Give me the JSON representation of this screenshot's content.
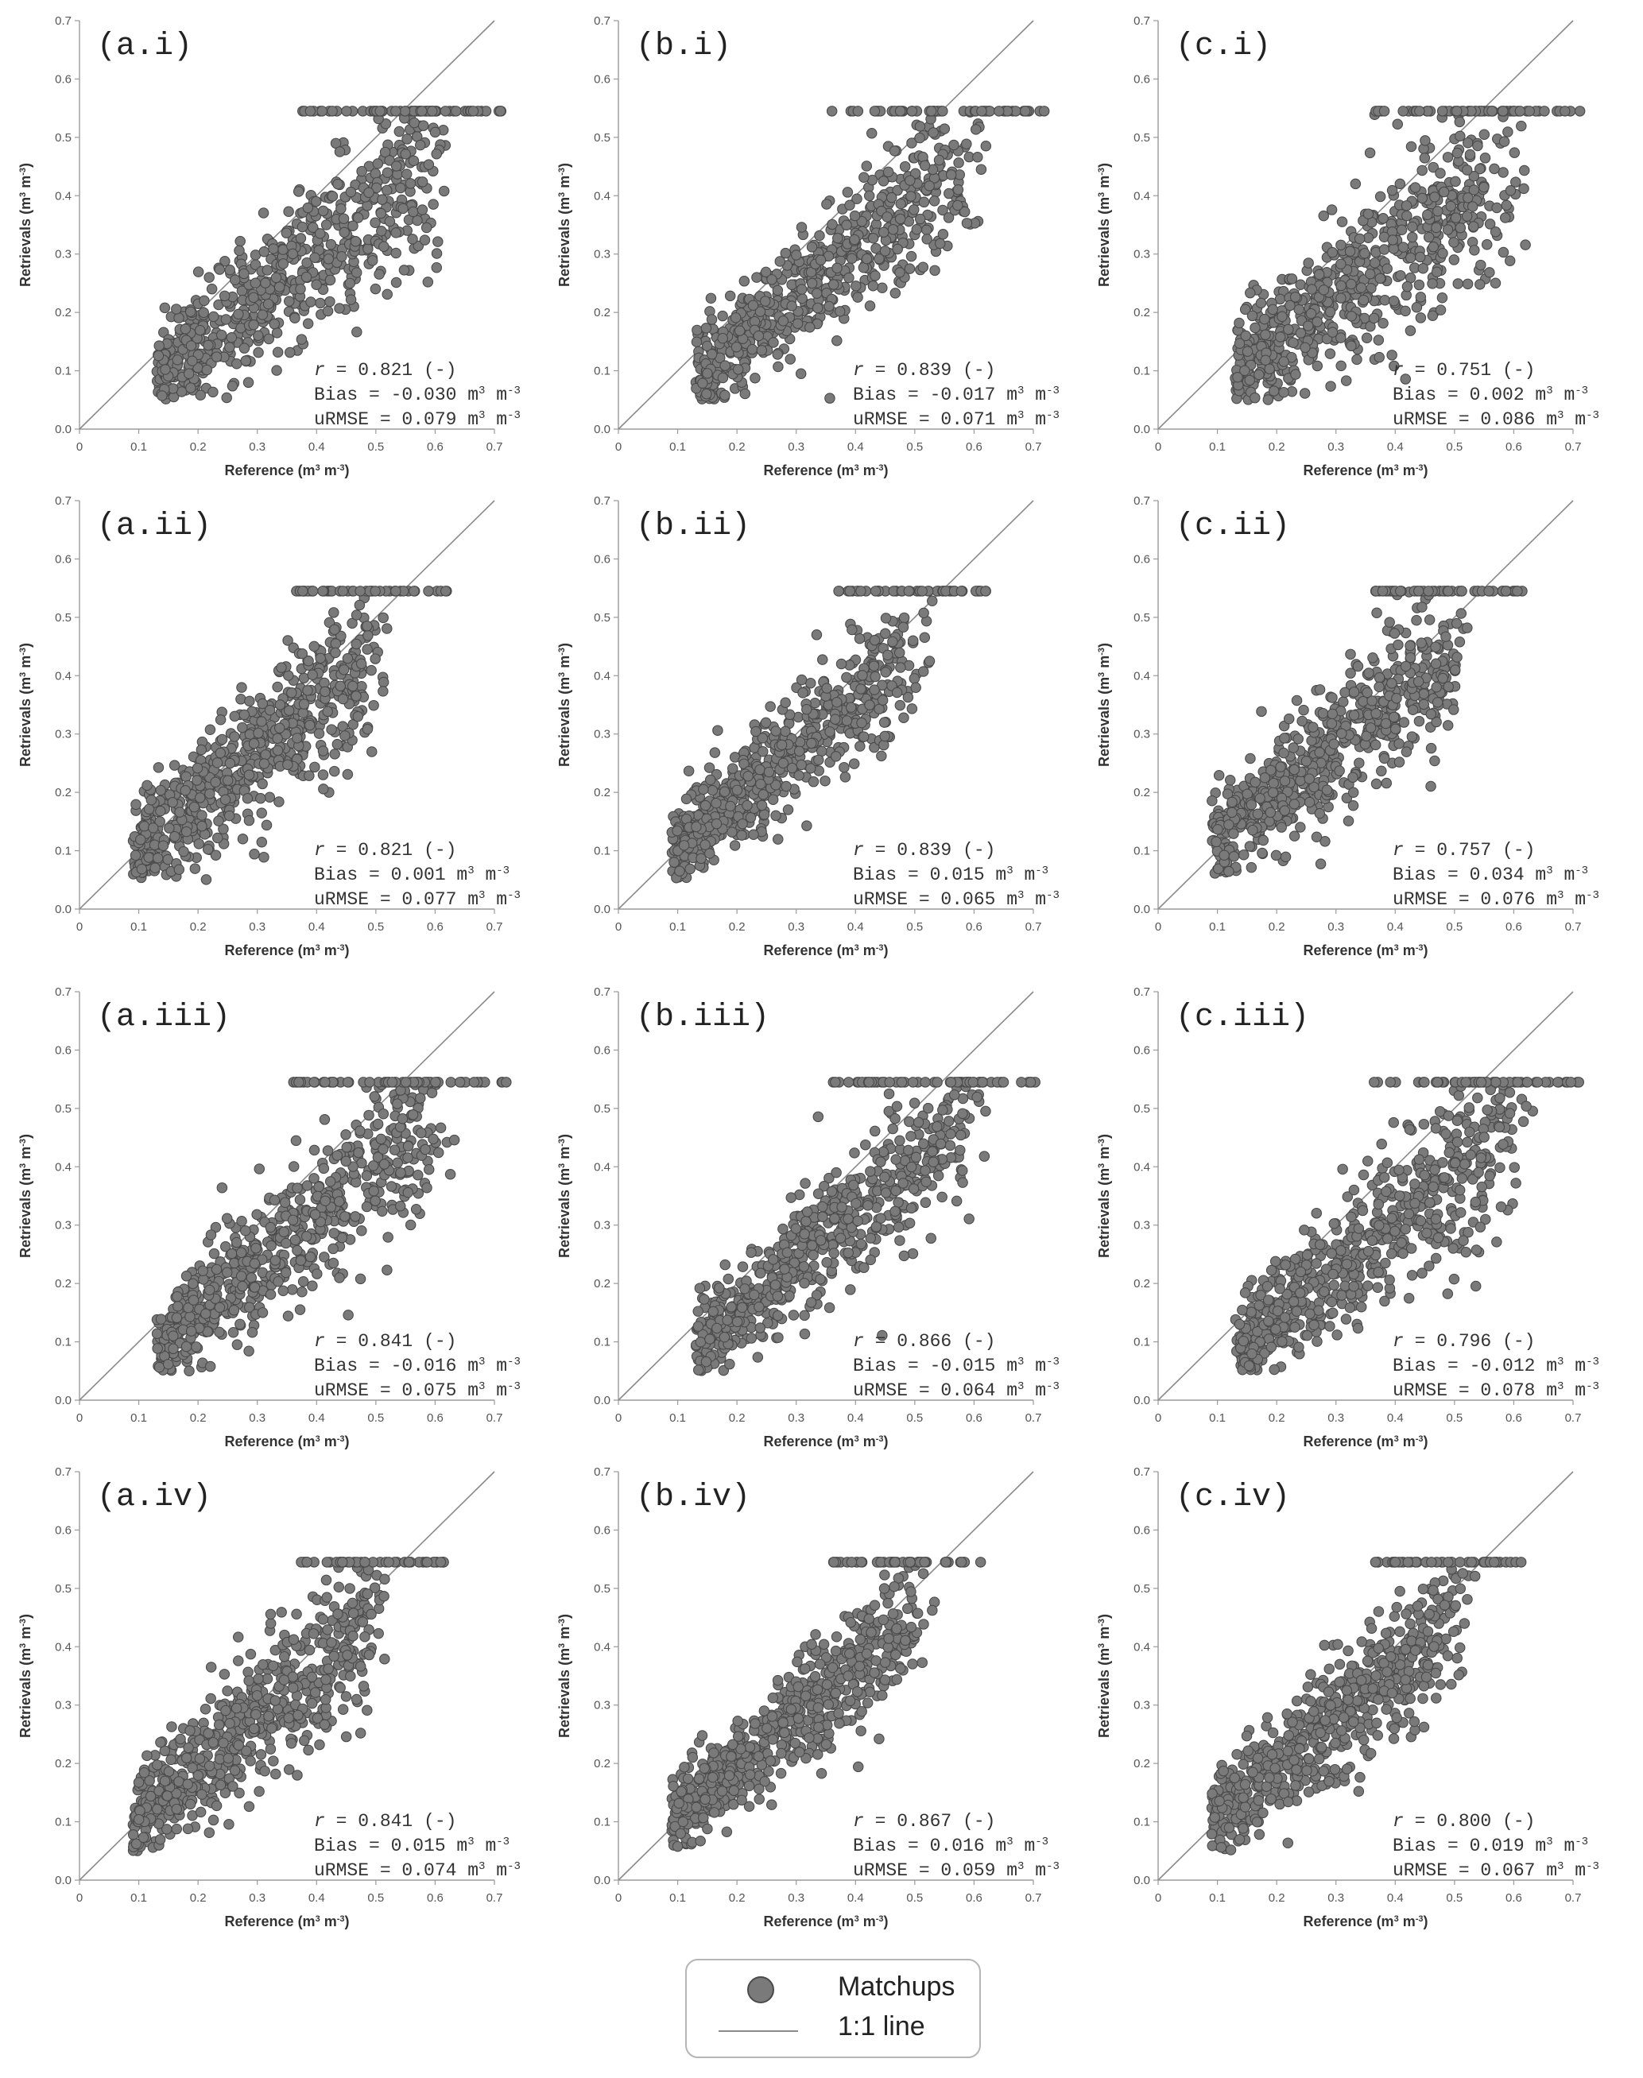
{
  "chart_data": [
    {
      "type": "scatter",
      "panel_label": "(a.i)",
      "xlabel": "Reference (m³ m⁻³)",
      "ylabel": "Retrievals (m³ m⁻³)",
      "xlim": [
        0,
        0.7
      ],
      "ylim": [
        0,
        0.7
      ],
      "xticks": [
        "0",
        "0.1",
        "0.2",
        "0.3",
        "0.4",
        "0.5",
        "0.6",
        "0.7"
      ],
      "yticks": [
        "0.0",
        "0.1",
        "0.2",
        "0.3",
        "0.4",
        "0.5",
        "0.6",
        "0.7"
      ],
      "annotations": [
        "r = 0.821 (-)",
        "Bias = -0.030 m³ m⁻³",
        "uRMSE = 0.079 m³ m⁻³"
      ],
      "stats": {
        "r": 0.821,
        "bias": -0.03,
        "urmse": 0.079
      },
      "x_range": [
        0.13,
        0.72
      ],
      "retrieval_cap": 0.545,
      "n_points_approx": 650
    },
    {
      "type": "scatter",
      "panel_label": "(b.i)",
      "xlabel": "Reference (m³ m⁻³)",
      "ylabel": "Retrievals (m³ m⁻³)",
      "xlim": [
        0,
        0.7
      ],
      "ylim": [
        0,
        0.7
      ],
      "xticks": [
        "0",
        "0.1",
        "0.2",
        "0.3",
        "0.4",
        "0.5",
        "0.6",
        "0.7"
      ],
      "yticks": [
        "0.0",
        "0.1",
        "0.2",
        "0.3",
        "0.4",
        "0.5",
        "0.6",
        "0.7"
      ],
      "annotations": [
        "r = 0.839 (-)",
        "Bias = -0.017 m³ m⁻³",
        "uRMSE = 0.071 m³ m⁻³"
      ],
      "stats": {
        "r": 0.839,
        "bias": -0.017,
        "urmse": 0.071
      },
      "x_range": [
        0.13,
        0.72
      ],
      "retrieval_cap": 0.545,
      "n_points_approx": 650
    },
    {
      "type": "scatter",
      "panel_label": "(c.i)",
      "xlabel": "Reference (m³ m⁻³)",
      "ylabel": "Retrievals (m³ m⁻³)",
      "xlim": [
        0,
        0.7
      ],
      "ylim": [
        0,
        0.7
      ],
      "xticks": [
        "0",
        "0.1",
        "0.2",
        "0.3",
        "0.4",
        "0.5",
        "0.6",
        "0.7"
      ],
      "yticks": [
        "0.0",
        "0.1",
        "0.2",
        "0.3",
        "0.4",
        "0.5",
        "0.6",
        "0.7"
      ],
      "annotations": [
        "r = 0.751 (-)",
        "Bias = 0.002 m³ m⁻³",
        "uRMSE = 0.086 m³ m⁻³"
      ],
      "stats": {
        "r": 0.751,
        "bias": 0.002,
        "urmse": 0.086
      },
      "x_range": [
        0.13,
        0.72
      ],
      "retrieval_cap": 0.545,
      "n_points_approx": 650
    },
    {
      "type": "scatter",
      "panel_label": "(a.ii)",
      "xlabel": "Reference (m³ m⁻³)",
      "ylabel": "Retrievals (m³ m⁻³)",
      "xlim": [
        0,
        0.7
      ],
      "ylim": [
        0,
        0.7
      ],
      "xticks": [
        "0",
        "0.1",
        "0.2",
        "0.3",
        "0.4",
        "0.5",
        "0.6",
        "0.7"
      ],
      "yticks": [
        "0.0",
        "0.1",
        "0.2",
        "0.3",
        "0.4",
        "0.5",
        "0.6",
        "0.7"
      ],
      "annotations": [
        "r = 0.821 (-)",
        "Bias = 0.001 m³ m⁻³",
        "uRMSE = 0.077 m³ m⁻³"
      ],
      "stats": {
        "r": 0.821,
        "bias": 0.001,
        "urmse": 0.077
      },
      "x_range": [
        0.09,
        0.62
      ],
      "retrieval_cap": 0.545,
      "n_points_approx": 650
    },
    {
      "type": "scatter",
      "panel_label": "(b.ii)",
      "xlabel": "Reference (m³ m⁻³)",
      "ylabel": "Retrievals (m³ m⁻³)",
      "xlim": [
        0,
        0.7
      ],
      "ylim": [
        0,
        0.7
      ],
      "xticks": [
        "0",
        "0.1",
        "0.2",
        "0.3",
        "0.4",
        "0.5",
        "0.6",
        "0.7"
      ],
      "yticks": [
        "0.0",
        "0.1",
        "0.2",
        "0.3",
        "0.4",
        "0.5",
        "0.6",
        "0.7"
      ],
      "annotations": [
        "r = 0.839 (-)",
        "Bias = 0.015 m³ m⁻³",
        "uRMSE = 0.065 m³ m⁻³"
      ],
      "stats": {
        "r": 0.839,
        "bias": 0.015,
        "urmse": 0.065
      },
      "x_range": [
        0.09,
        0.62
      ],
      "retrieval_cap": 0.545,
      "n_points_approx": 650
    },
    {
      "type": "scatter",
      "panel_label": "(c.ii)",
      "xlabel": "Reference (m³ m⁻³)",
      "ylabel": "Retrievals (m³ m⁻³)",
      "xlim": [
        0,
        0.7
      ],
      "ylim": [
        0,
        0.7
      ],
      "xticks": [
        "0",
        "0.1",
        "0.2",
        "0.3",
        "0.4",
        "0.5",
        "0.6",
        "0.7"
      ],
      "yticks": [
        "0.0",
        "0.1",
        "0.2",
        "0.3",
        "0.4",
        "0.5",
        "0.6",
        "0.7"
      ],
      "annotations": [
        "r = 0.757 (-)",
        "Bias = 0.034 m³ m⁻³",
        "uRMSE = 0.076 m³ m⁻³"
      ],
      "stats": {
        "r": 0.757,
        "bias": 0.034,
        "urmse": 0.076
      },
      "x_range": [
        0.09,
        0.62
      ],
      "retrieval_cap": 0.545,
      "n_points_approx": 650
    },
    {
      "type": "scatter",
      "panel_label": "(a.iii)",
      "xlabel": "Reference (m³ m⁻³)",
      "ylabel": "Retrievals (m³ m⁻³)",
      "xlim": [
        0,
        0.7
      ],
      "ylim": [
        0,
        0.7
      ],
      "xticks": [
        "0",
        "0.1",
        "0.2",
        "0.3",
        "0.4",
        "0.5",
        "0.6",
        "0.7"
      ],
      "yticks": [
        "0.0",
        "0.1",
        "0.2",
        "0.3",
        "0.4",
        "0.5",
        "0.6",
        "0.7"
      ],
      "annotations": [
        "r = 0.841 (-)",
        "Bias = -0.016 m³ m⁻³",
        "uRMSE = 0.075 m³ m⁻³"
      ],
      "stats": {
        "r": 0.841,
        "bias": -0.016,
        "urmse": 0.075
      },
      "x_range": [
        0.13,
        0.72
      ],
      "retrieval_cap": 0.545,
      "n_points_approx": 650
    },
    {
      "type": "scatter",
      "panel_label": "(b.iii)",
      "xlabel": "Reference (m³ m⁻³)",
      "ylabel": "Retrievals (m³ m⁻³)",
      "xlim": [
        0,
        0.7
      ],
      "ylim": [
        0,
        0.7
      ],
      "xticks": [
        "0",
        "0.1",
        "0.2",
        "0.3",
        "0.4",
        "0.5",
        "0.6",
        "0.7"
      ],
      "yticks": [
        "0.0",
        "0.1",
        "0.2",
        "0.3",
        "0.4",
        "0.5",
        "0.6",
        "0.7"
      ],
      "annotations": [
        "r = 0.866 (-)",
        "Bias = -0.015 m³ m⁻³",
        "uRMSE = 0.064 m³ m⁻³"
      ],
      "stats": {
        "r": 0.866,
        "bias": -0.015,
        "urmse": 0.064
      },
      "x_range": [
        0.13,
        0.72
      ],
      "retrieval_cap": 0.545,
      "n_points_approx": 650
    },
    {
      "type": "scatter",
      "panel_label": "(c.iii)",
      "xlabel": "Reference (m³ m⁻³)",
      "ylabel": "Retrievals (m³ m⁻³)",
      "xlim": [
        0,
        0.7
      ],
      "ylim": [
        0,
        0.7
      ],
      "xticks": [
        "0",
        "0.1",
        "0.2",
        "0.3",
        "0.4",
        "0.5",
        "0.6",
        "0.7"
      ],
      "yticks": [
        "0.0",
        "0.1",
        "0.2",
        "0.3",
        "0.4",
        "0.5",
        "0.6",
        "0.7"
      ],
      "annotations": [
        "r = 0.796 (-)",
        "Bias = -0.012 m³ m⁻³",
        "uRMSE = 0.078 m³ m⁻³"
      ],
      "stats": {
        "r": 0.796,
        "bias": -0.012,
        "urmse": 0.078
      },
      "x_range": [
        0.13,
        0.72
      ],
      "retrieval_cap": 0.545,
      "n_points_approx": 650
    },
    {
      "type": "scatter",
      "panel_label": "(a.iv)",
      "xlabel": "Reference (m³ m⁻³)",
      "ylabel": "Retrievals (m³ m⁻³)",
      "xlim": [
        0,
        0.7
      ],
      "ylim": [
        0,
        0.7
      ],
      "xticks": [
        "0",
        "0.1",
        "0.2",
        "0.3",
        "0.4",
        "0.5",
        "0.6",
        "0.7"
      ],
      "yticks": [
        "0.0",
        "0.1",
        "0.2",
        "0.3",
        "0.4",
        "0.5",
        "0.6",
        "0.7"
      ],
      "annotations": [
        "r = 0.841 (-)",
        "Bias = 0.015 m³ m⁻³",
        "uRMSE = 0.074 m³ m⁻³"
      ],
      "stats": {
        "r": 0.841,
        "bias": 0.015,
        "urmse": 0.074
      },
      "x_range": [
        0.09,
        0.62
      ],
      "retrieval_cap": 0.545,
      "n_points_approx": 650
    },
    {
      "type": "scatter",
      "panel_label": "(b.iv)",
      "xlabel": "Reference (m³ m⁻³)",
      "ylabel": "Retrievals (m³ m⁻³)",
      "xlim": [
        0,
        0.7
      ],
      "ylim": [
        0,
        0.7
      ],
      "xticks": [
        "0",
        "0.1",
        "0.2",
        "0.3",
        "0.4",
        "0.5",
        "0.6",
        "0.7"
      ],
      "yticks": [
        "0.0",
        "0.1",
        "0.2",
        "0.3",
        "0.4",
        "0.5",
        "0.6",
        "0.7"
      ],
      "annotations": [
        "r = 0.867 (-)",
        "Bias = 0.016 m³ m⁻³",
        "uRMSE = 0.059 m³ m⁻³"
      ],
      "stats": {
        "r": 0.867,
        "bias": 0.016,
        "urmse": 0.059
      },
      "x_range": [
        0.09,
        0.62
      ],
      "retrieval_cap": 0.545,
      "n_points_approx": 650
    },
    {
      "type": "scatter",
      "panel_label": "(c.iv)",
      "xlabel": "Reference (m³ m⁻³)",
      "ylabel": "Retrievals (m³ m⁻³)",
      "xlim": [
        0,
        0.7
      ],
      "ylim": [
        0,
        0.7
      ],
      "xticks": [
        "0",
        "0.1",
        "0.2",
        "0.3",
        "0.4",
        "0.5",
        "0.6",
        "0.7"
      ],
      "yticks": [
        "0.0",
        "0.1",
        "0.2",
        "0.3",
        "0.4",
        "0.5",
        "0.6",
        "0.7"
      ],
      "annotations": [
        "r = 0.800 (-)",
        "Bias = 0.019 m³ m⁻³",
        "uRMSE = 0.067 m³ m⁻³"
      ],
      "stats": {
        "r": 0.8,
        "bias": 0.019,
        "urmse": 0.067
      },
      "x_range": [
        0.09,
        0.62
      ],
      "retrieval_cap": 0.545,
      "n_points_approx": 650
    }
  ],
  "legend": {
    "items": [
      {
        "label": "Matchups",
        "marker": "circle"
      },
      {
        "label": "1:1 line",
        "marker": "line"
      }
    ]
  },
  "colors": {
    "marker_fill": "#7a7a7a",
    "marker_edge": "#4a4a4a",
    "one_to_one_line": "#8a8a8a",
    "axis": "#9a9a9a",
    "text": "#333333"
  }
}
